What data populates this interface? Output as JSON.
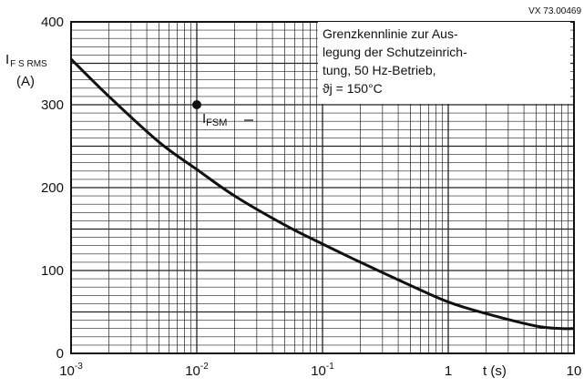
{
  "chart_data": {
    "type": "line",
    "x_scale": "log",
    "xlim": [
      0.001,
      10
    ],
    "ylim": [
      0,
      400
    ],
    "grid": true,
    "figure_code": "VX 73.00469",
    "xlabel": "t (s)",
    "ylabel_lines": [
      "I",
      "F S RMS",
      "(A)"
    ],
    "x_ticks": [
      {
        "value": 0.001,
        "base": "10",
        "exp": "-3"
      },
      {
        "value": 0.01,
        "base": "10",
        "exp": "-2"
      },
      {
        "value": 0.1,
        "base": "10",
        "exp": "-1"
      },
      {
        "value": 1,
        "base": "1",
        "exp": ""
      },
      {
        "value": 10,
        "base": "10",
        "exp": ""
      }
    ],
    "y_ticks": [
      "0",
      "100",
      "200",
      "300",
      "400"
    ],
    "annotation_lines": [
      "Grenzkennlinie zur Aus-",
      "legung der Schutzeinrich-",
      "tung, 50 Hz-Betrieb,",
      "ϑj = 150°C"
    ],
    "point": {
      "x": 0.01,
      "y": 300,
      "label_main": "I",
      "label_sub": "FSM"
    },
    "series": [
      {
        "x": [
          0.001,
          0.002,
          0.005,
          0.01,
          0.02,
          0.05,
          0.1,
          0.2,
          0.5,
          1,
          2,
          5,
          8,
          10
        ],
        "y": [
          355,
          310,
          255,
          222,
          190,
          155,
          132,
          110,
          82,
          62,
          48,
          33,
          30,
          30
        ]
      }
    ]
  }
}
